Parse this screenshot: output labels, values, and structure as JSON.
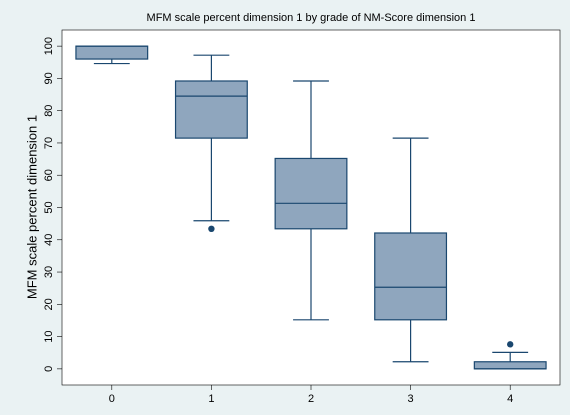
{
  "chart_data": {
    "type": "box",
    "title": "MFM scale percent dimension 1 by grade of NM-Score dimension 1",
    "y_label": "MFM scale percent dimension 1",
    "categories": [
      "0",
      "1",
      "2",
      "3",
      "4"
    ],
    "boxes": [
      {
        "min": 94.6,
        "q1": 96,
        "median": 100,
        "q3": 100,
        "max": 100,
        "outliers": []
      },
      {
        "min": 45.9,
        "q1": 71.5,
        "median": 84.5,
        "q3": 89.2,
        "max": 97.2,
        "outliers": [
          43.4
        ]
      },
      {
        "min": 15.2,
        "q1": 43.4,
        "median": 51.3,
        "q3": 65.2,
        "max": 89.2,
        "outliers": []
      },
      {
        "min": 2.2,
        "q1": 15.2,
        "median": 25.3,
        "q3": 42.1,
        "max": 71.5,
        "outliers": []
      },
      {
        "min": 0,
        "q1": 0,
        "median": 0,
        "q3": 2.2,
        "max": 5.1,
        "outliers": [
          7.6
        ]
      }
    ],
    "color": "#8fa6be",
    "line_color": "#1a476f",
    "ylim": [
      -5,
      105
    ],
    "yticks": [
      0,
      10,
      20,
      30,
      40,
      50,
      60,
      70,
      80,
      90,
      100
    ]
  }
}
